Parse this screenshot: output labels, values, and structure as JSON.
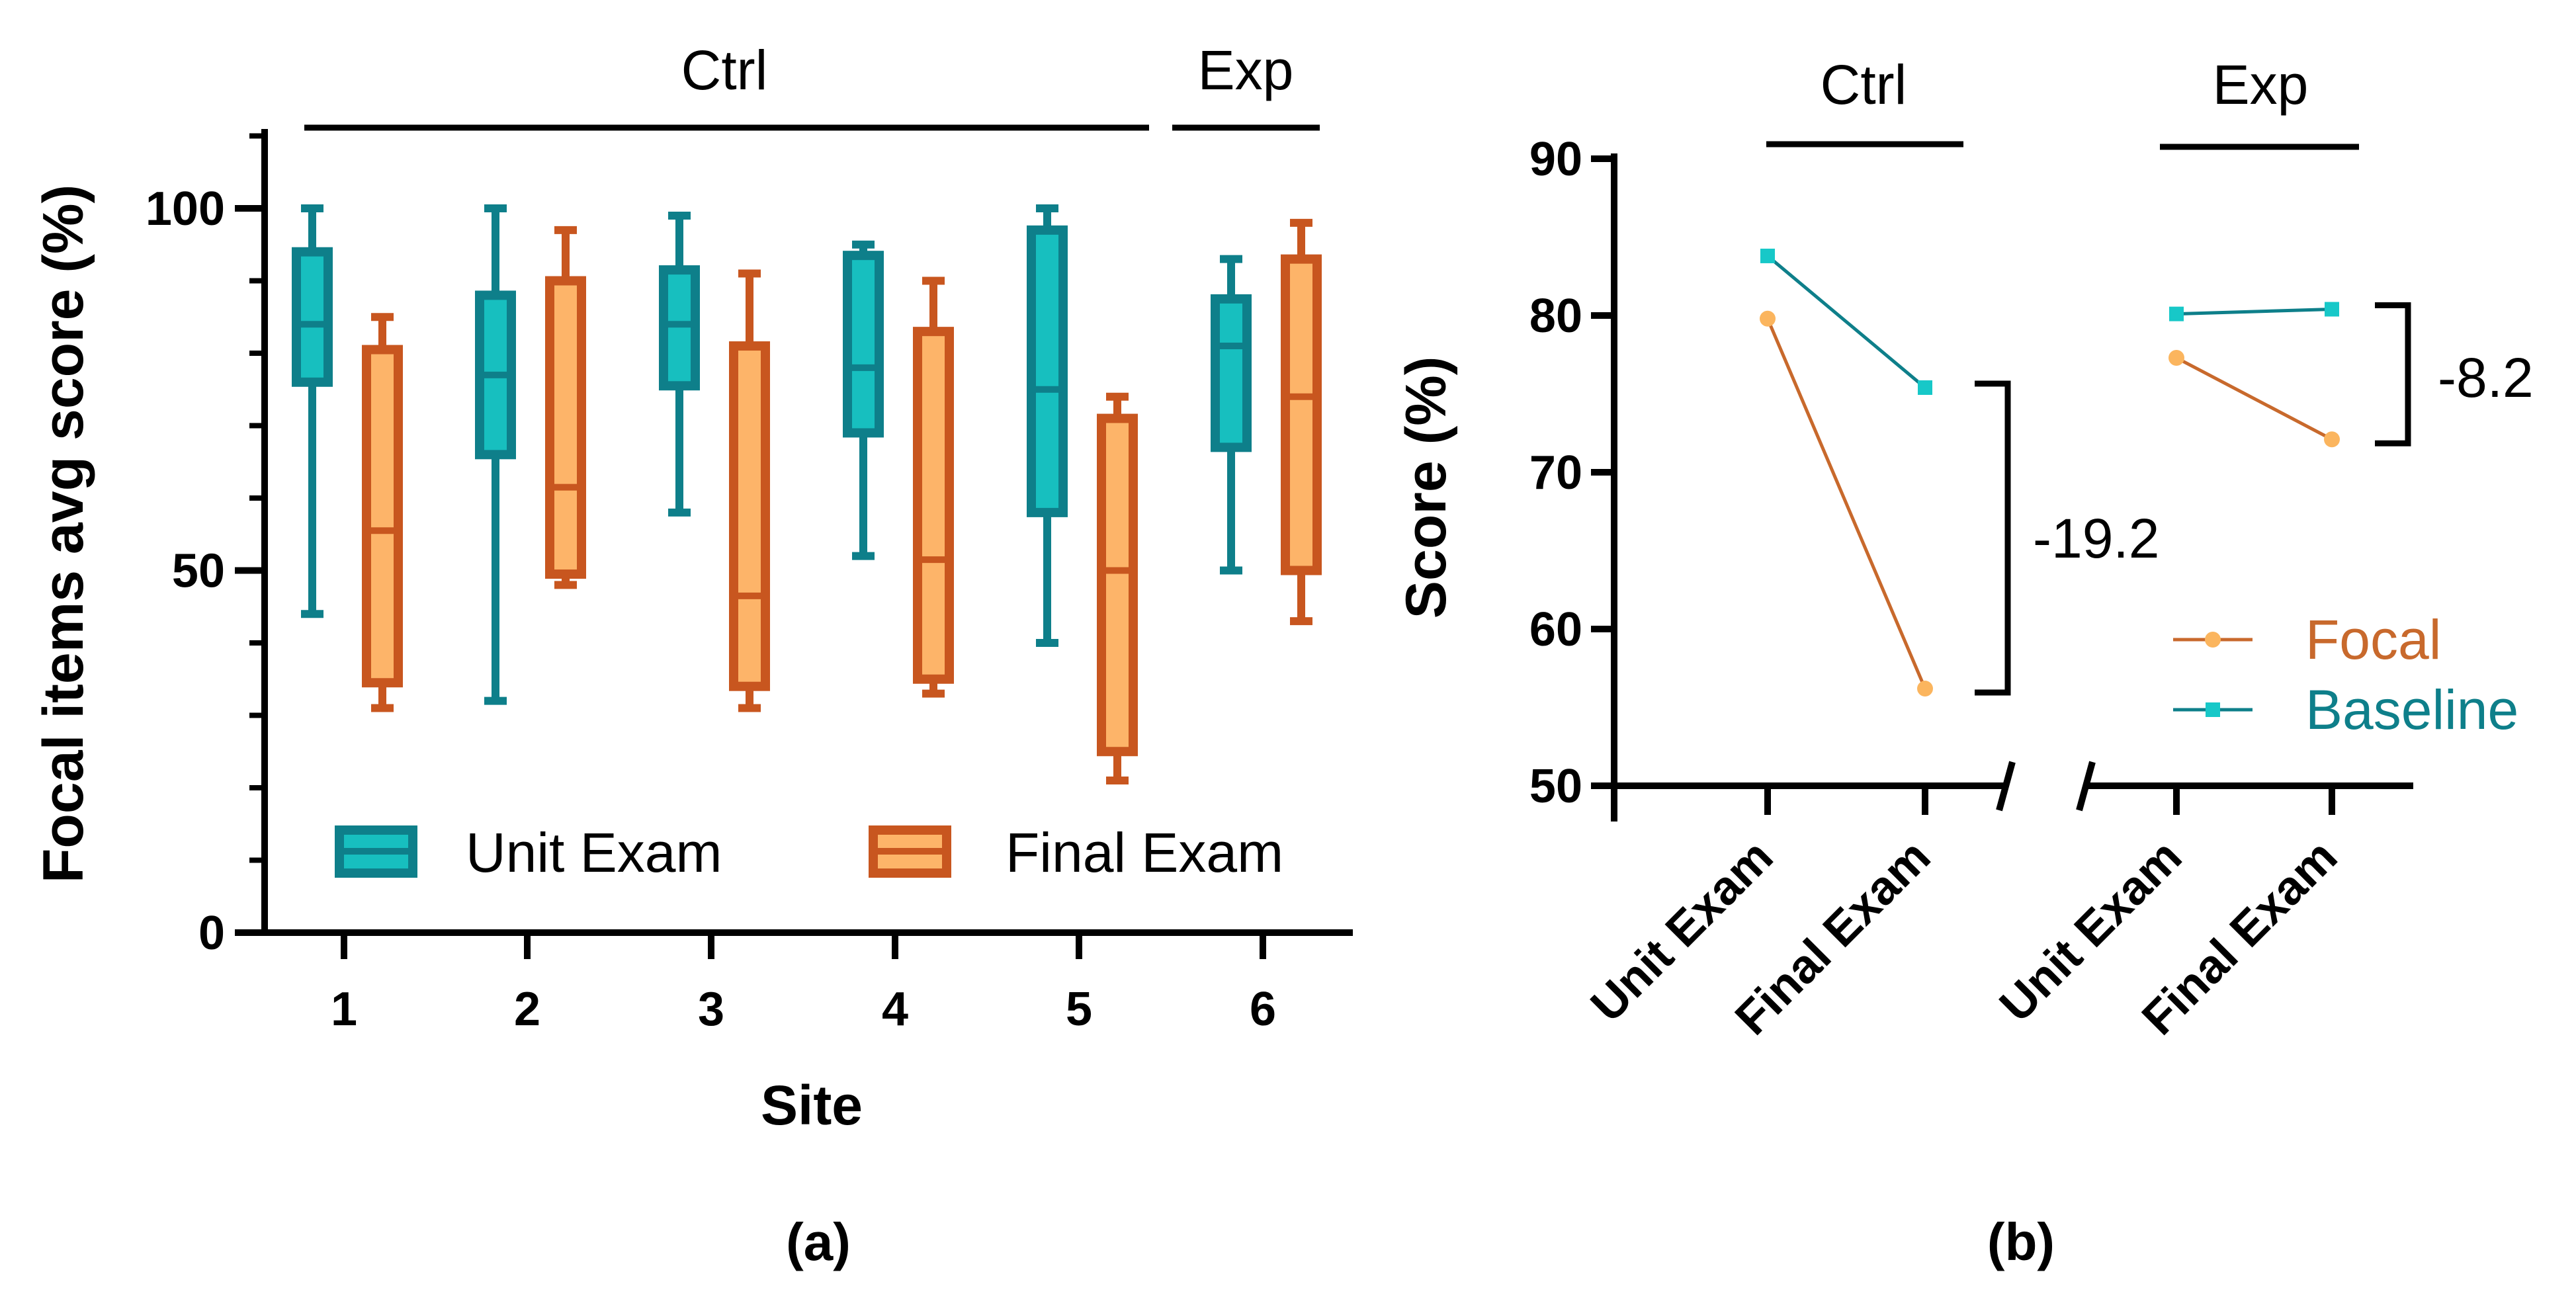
{
  "colors": {
    "unit_fill": "#17BFBF",
    "unit_stroke": "#0E7F8A",
    "final_fill": "#FDB469",
    "final_stroke": "#C8561F",
    "focal_line": "#C8692C",
    "focal_marker": "#FBB55E",
    "baseline_line": "#0E7F8A",
    "baseline_marker": "#17C8C8",
    "axis": "#000000"
  },
  "chart_data": [
    {
      "type": "box",
      "panel_label": "(a)",
      "xlabel": "Site",
      "ylabel": "Focal items avg score (%)",
      "ylim": [
        0,
        110
      ],
      "yticks_major": [
        0,
        50,
        100
      ],
      "yticks_minor": [
        10,
        20,
        30,
        40,
        60,
        70,
        80,
        90,
        110
      ],
      "categories": [
        "1",
        "2",
        "3",
        "4",
        "5",
        "6"
      ],
      "groups": [
        {
          "label": "Ctrl",
          "sites": [
            "1",
            "2",
            "3",
            "4",
            "5"
          ]
        },
        {
          "label": "Exp",
          "sites": [
            "6"
          ]
        }
      ],
      "legend": {
        "position": "bottom",
        "entries": [
          "Unit Exam",
          "Final Exam"
        ]
      },
      "series": [
        {
          "name": "Unit Exam",
          "boxes": [
            {
              "min": 44,
              "q1": 76,
              "median": 84,
              "q3": 94,
              "max": 100
            },
            {
              "min": 32,
              "q1": 66,
              "median": 77,
              "q3": 88,
              "max": 100
            },
            {
              "min": 58,
              "q1": 75.5,
              "median": 84,
              "q3": 91.5,
              "max": 99
            },
            {
              "min": 52,
              "q1": 69,
              "median": 78,
              "q3": 93.5,
              "max": 95
            },
            {
              "min": 40,
              "q1": 58,
              "median": 75,
              "q3": 97,
              "max": 100
            },
            {
              "min": 50,
              "q1": 67,
              "median": 81,
              "q3": 87.5,
              "max": 93
            }
          ]
        },
        {
          "name": "Final Exam",
          "boxes": [
            {
              "min": 31,
              "q1": 34.5,
              "median": 55.5,
              "q3": 80.5,
              "max": 85
            },
            {
              "min": 48,
              "q1": 49.5,
              "median": 61.5,
              "q3": 90,
              "max": 97
            },
            {
              "min": 31,
              "q1": 34,
              "median": 46.5,
              "q3": 81,
              "max": 91
            },
            {
              "min": 33,
              "q1": 35,
              "median": 51.5,
              "q3": 83,
              "max": 90
            },
            {
              "min": 21,
              "q1": 25,
              "median": 50,
              "q3": 71,
              "max": 74
            },
            {
              "min": 43,
              "q1": 50,
              "median": 74,
              "q3": 93,
              "max": 98
            }
          ]
        }
      ]
    },
    {
      "type": "line",
      "panel_label": "(b)",
      "ylabel": "Score (%)",
      "ylim": [
        50,
        90
      ],
      "yticks": [
        50,
        60,
        70,
        80,
        90
      ],
      "x_groups": [
        {
          "label": "Ctrl",
          "categories": [
            "Unit Exam",
            "Final Exam"
          ],
          "difference": "-19.2"
        },
        {
          "label": "Exp",
          "categories": [
            "Unit Exam",
            "Final Exam"
          ],
          "difference": "-8.2"
        }
      ],
      "legend": {
        "position": "right",
        "entries": [
          "Focal",
          "Baseline"
        ]
      },
      "series": [
        {
          "name": "Focal",
          "values": [
            [
              79.8,
              56.2
            ],
            [
              77.3,
              72.1
            ]
          ]
        },
        {
          "name": "Baseline",
          "values": [
            [
              83.8,
              75.4
            ],
            [
              80.1,
              80.4
            ]
          ]
        }
      ]
    }
  ]
}
